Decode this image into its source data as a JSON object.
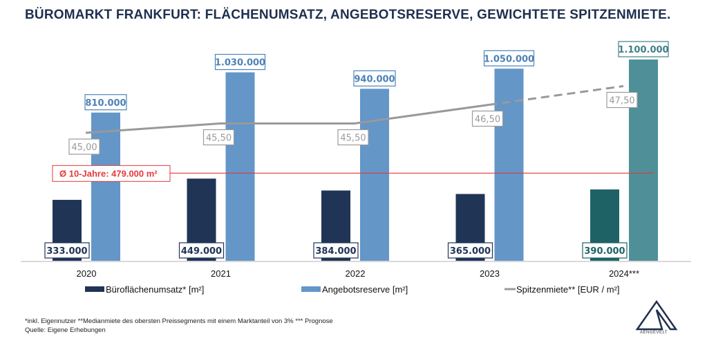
{
  "title": "BÜROMARKT FRANKFURT: FLÄCHENUMSATZ, ANGEBOTSRESERVE, GEWICHTETE SPITZENMIETE.",
  "chart_data": {
    "type": "bar+line",
    "categories": [
      "2020",
      "2021",
      "2022",
      "2023",
      "2024***"
    ],
    "series": [
      {
        "name": "Büroflächenumsatz* [m²]",
        "type": "bar",
        "values": [
          333000,
          449000,
          384000,
          365000,
          390000
        ],
        "labels": [
          "333.000",
          "449.000",
          "384.000",
          "365.000",
          "390.000"
        ],
        "color": "#203456",
        "forecast_color": "#1f6266"
      },
      {
        "name": "Angebotsreserve [m²]",
        "type": "bar",
        "values": [
          810000,
          1030000,
          940000,
          1050000,
          1100000
        ],
        "labels": [
          "810.000",
          "1.030.000",
          "940.000",
          "1.050.000",
          "1.100.000"
        ],
        "color": "#6496c8",
        "forecast_color": "#4f8f98"
      },
      {
        "name": "Spitzenmiete** [EUR / m²]",
        "type": "line",
        "values": [
          45.0,
          45.5,
          45.5,
          46.5,
          47.5
        ],
        "labels": [
          "45,00",
          "45,50",
          "45,50",
          "46,50",
          "47,50"
        ],
        "color": "#999999",
        "dashed_last_segment": true
      }
    ],
    "reference_line": {
      "value": 479000,
      "label": "Ø 10-Jahre: 479.000 m²",
      "color": "#e23a3a"
    },
    "legend_position": "bottom",
    "grid": false
  },
  "footnote": "*inkl. Eigennutzer **Medianmiete des obersten Preissegments mit einem Marktanteil von 3% *** Prognose",
  "source": "Quelle: Eigene Erhebungen",
  "logo_text": "AENGEVELT"
}
